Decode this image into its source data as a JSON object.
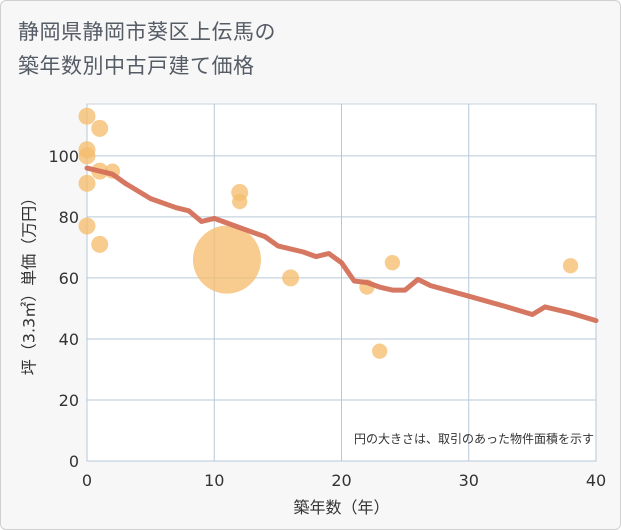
{
  "title_line1": "静岡県静岡市葵区上伝馬の",
  "title_line2": "築年数別中古戸建て価格",
  "chart_data": {
    "type": "scatter",
    "title": "静岡県静岡市葵区上伝馬の築年数別中古戸建て価格",
    "xlabel": "築年数（年）",
    "ylabel": "坪（3.3㎡）単価（万円）",
    "xlim": [
      0,
      40
    ],
    "ylim": [
      0,
      117
    ],
    "xticks": [
      0,
      10,
      20,
      30,
      40
    ],
    "yticks": [
      0,
      20,
      40,
      60,
      80,
      100
    ],
    "grid": true,
    "note": "円の大きさは、取引のあった物件面積を示す",
    "colors": {
      "bubble": "#f5be6e",
      "line": "#d4705a",
      "grid": "#b7c9d9"
    },
    "bubbles": [
      {
        "x": 0,
        "y": 113,
        "size": 1.0
      },
      {
        "x": 0,
        "y": 102,
        "size": 1.0
      },
      {
        "x": 0,
        "y": 100,
        "size": 1.0
      },
      {
        "x": 0,
        "y": 91,
        "size": 1.0
      },
      {
        "x": 0,
        "y": 77,
        "size": 1.0
      },
      {
        "x": 1,
        "y": 109,
        "size": 1.0
      },
      {
        "x": 1,
        "y": 95,
        "size": 1.0
      },
      {
        "x": 1,
        "y": 71,
        "size": 1.0
      },
      {
        "x": 2,
        "y": 95,
        "size": 0.9
      },
      {
        "x": 11,
        "y": 66,
        "size": 4.0
      },
      {
        "x": 12,
        "y": 88,
        "size": 1.0
      },
      {
        "x": 12,
        "y": 85,
        "size": 0.9
      },
      {
        "x": 16,
        "y": 60,
        "size": 1.0
      },
      {
        "x": 22,
        "y": 57,
        "size": 0.9
      },
      {
        "x": 23,
        "y": 36,
        "size": 0.9
      },
      {
        "x": 24,
        "y": 65,
        "size": 0.9
      },
      {
        "x": 38,
        "y": 64,
        "size": 0.9
      }
    ],
    "trend": {
      "x": [
        0,
        2,
        3,
        5,
        7,
        8,
        9,
        10,
        11,
        12,
        13,
        14,
        15,
        17,
        18,
        19,
        20,
        21,
        22,
        23,
        24,
        25,
        26,
        27,
        30,
        33,
        35,
        36,
        38,
        40
      ],
      "y": [
        96,
        94,
        91,
        86,
        83,
        82,
        78.5,
        79.5,
        78,
        76.5,
        75,
        73.5,
        70.5,
        68.5,
        67,
        68,
        65,
        59,
        58.5,
        57,
        56,
        56,
        59.5,
        57.5,
        54,
        50.5,
        48,
        50.5,
        48.5,
        46
      ]
    }
  }
}
